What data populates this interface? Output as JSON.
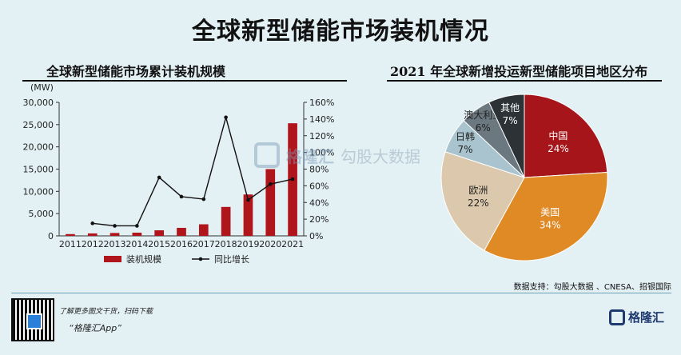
{
  "title": "全球新型储能市场装机情况",
  "left_title": "全球新型储能市场累计装机规模",
  "right_title": "2021 年全球新增投运新型储能项目地区分布",
  "source": "数据支持：勾股大数据 、CNESA、招银国际",
  "promo_line1": "了解更多图文干货，扫码下载",
  "promo_line2": "“格隆汇App”",
  "brand": "格隆汇",
  "watermark": {
    "brand": "格隆汇",
    "text": "勾股大数据",
    "url": "www.gogudata.com"
  },
  "colors": {
    "bar": "#b0151b",
    "line": "#111111",
    "background": "#e3f0f4"
  },
  "chart_data": [
    {
      "type": "bar",
      "categories": [
        "2011",
        "2012",
        "2013",
        "2014",
        "2015",
        "2016",
        "2017",
        "2018",
        "2019",
        "2020",
        "2021"
      ],
      "ylabel": "(MW)",
      "ylim": [
        0,
        30000
      ],
      "yticks": [
        "0",
        "5,000",
        "10,000",
        "15,000",
        "20,000",
        "25,000",
        "30,000"
      ],
      "y2lim": [
        0,
        160
      ],
      "y2ticks": [
        "0%",
        "20%",
        "40%",
        "60%",
        "80%",
        "100%",
        "120%",
        "140%",
        "160%"
      ],
      "series": [
        {
          "name": "装机规模",
          "kind": "bar",
          "axis": "left",
          "values": [
            400,
            550,
            650,
            720,
            1250,
            1800,
            2600,
            6500,
            9300,
            15000,
            25300
          ]
        },
        {
          "name": "同比增长",
          "kind": "line",
          "axis": "right",
          "values": [
            null,
            15,
            12,
            12,
            70,
            47,
            44,
            142,
            43,
            62,
            68
          ]
        }
      ],
      "legend": "bottom"
    },
    {
      "type": "pie",
      "slices": [
        {
          "label": "中国",
          "value": 24,
          "text": "24%",
          "color": "#a5151a"
        },
        {
          "label": "美国",
          "value": 34,
          "text": "34%",
          "color": "#e08a26"
        },
        {
          "label": "欧洲",
          "value": 22,
          "text": "22%",
          "color": "#dcc9ad"
        },
        {
          "label": "日韩",
          "value": 7,
          "text": "7%",
          "color": "#a9c4cf"
        },
        {
          "label": "澳大利亚",
          "value": 6,
          "text": "6%",
          "color": "#6b7880"
        },
        {
          "label": "其他",
          "value": 7,
          "text": "7%",
          "color": "#2c3236"
        }
      ]
    }
  ]
}
